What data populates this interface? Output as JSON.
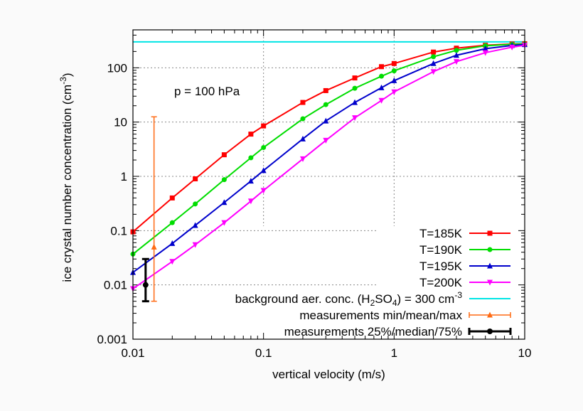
{
  "chart_data": {
    "type": "line",
    "xlabel": "vertical velocity (m/s)",
    "ylabel_parts": {
      "base": "ice crystal number concentration (cm",
      "sup": "-3",
      "end": ")"
    },
    "x_scale": "log",
    "y_scale": "log",
    "xlim": [
      0.01,
      10
    ],
    "ylim": [
      0.001,
      500
    ],
    "x_ticks": [
      0.01,
      0.1,
      1,
      10
    ],
    "x_tick_labels": [
      "0.01",
      "0.1",
      "1",
      "10"
    ],
    "y_ticks": [
      0.001,
      0.01,
      0.1,
      1,
      10,
      100
    ],
    "y_tick_labels": [
      "0.001",
      "0.01",
      "0.1",
      "1",
      "10",
      "100"
    ],
    "grid": true,
    "legend_position": "bottom-right",
    "annotation": "p = 100 hPa",
    "series": [
      {
        "name": "T=185K",
        "color": "#ff0000",
        "marker": "square",
        "x": [
          0.01,
          0.02,
          0.03,
          0.05,
          0.08,
          0.1,
          0.2,
          0.3,
          0.5,
          0.8,
          1,
          2,
          3,
          5,
          8,
          10
        ],
        "y": [
          0.095,
          0.4,
          0.9,
          2.5,
          6,
          8.5,
          23,
          38,
          65,
          105,
          120,
          195,
          230,
          260,
          275,
          278
        ]
      },
      {
        "name": "T=190K",
        "color": "#00dd00",
        "marker": "circle",
        "x": [
          0.01,
          0.02,
          0.03,
          0.05,
          0.08,
          0.1,
          0.2,
          0.3,
          0.5,
          0.8,
          1,
          2,
          3,
          5,
          8,
          10
        ],
        "y": [
          0.037,
          0.14,
          0.31,
          0.87,
          2.2,
          3.4,
          11.5,
          21,
          42,
          70,
          88,
          160,
          210,
          255,
          270,
          275
        ]
      },
      {
        "name": "T=195K",
        "color": "#0000cc",
        "marker": "triangle-up",
        "x": [
          0.01,
          0.02,
          0.03,
          0.05,
          0.08,
          0.1,
          0.2,
          0.3,
          0.5,
          0.8,
          1,
          2,
          3,
          5,
          8,
          10
        ],
        "y": [
          0.017,
          0.058,
          0.125,
          0.33,
          0.82,
          1.28,
          4.9,
          10.5,
          23,
          43,
          58,
          120,
          170,
          225,
          258,
          268
        ]
      },
      {
        "name": "T=200K",
        "color": "#ff00ff",
        "marker": "triangle-down",
        "x": [
          0.01,
          0.02,
          0.03,
          0.05,
          0.08,
          0.1,
          0.2,
          0.3,
          0.5,
          0.8,
          1,
          2,
          3,
          5,
          8,
          10
        ],
        "y": [
          0.0085,
          0.027,
          0.055,
          0.14,
          0.35,
          0.55,
          2.1,
          4.6,
          12,
          25,
          36,
          85,
          130,
          190,
          240,
          260
        ]
      }
    ],
    "background": {
      "label_parts": [
        "background aer. conc. (H",
        "2",
        "SO",
        "4",
        ")  = 300 cm",
        "-3"
      ],
      "color": "#00e5e5",
      "y": 300
    },
    "measurements_minmax": {
      "label": "measurements min/mean/max",
      "color": "#ff6a13",
      "x": 0.0145,
      "min": 0.005,
      "mean": 0.05,
      "max": 12.5
    },
    "measurements_quartiles": {
      "label": "measurements 25%/median/75%",
      "color": "#000000",
      "x": 0.0125,
      "q25": 0.005,
      "median": 0.01,
      "q75": 0.03
    }
  }
}
